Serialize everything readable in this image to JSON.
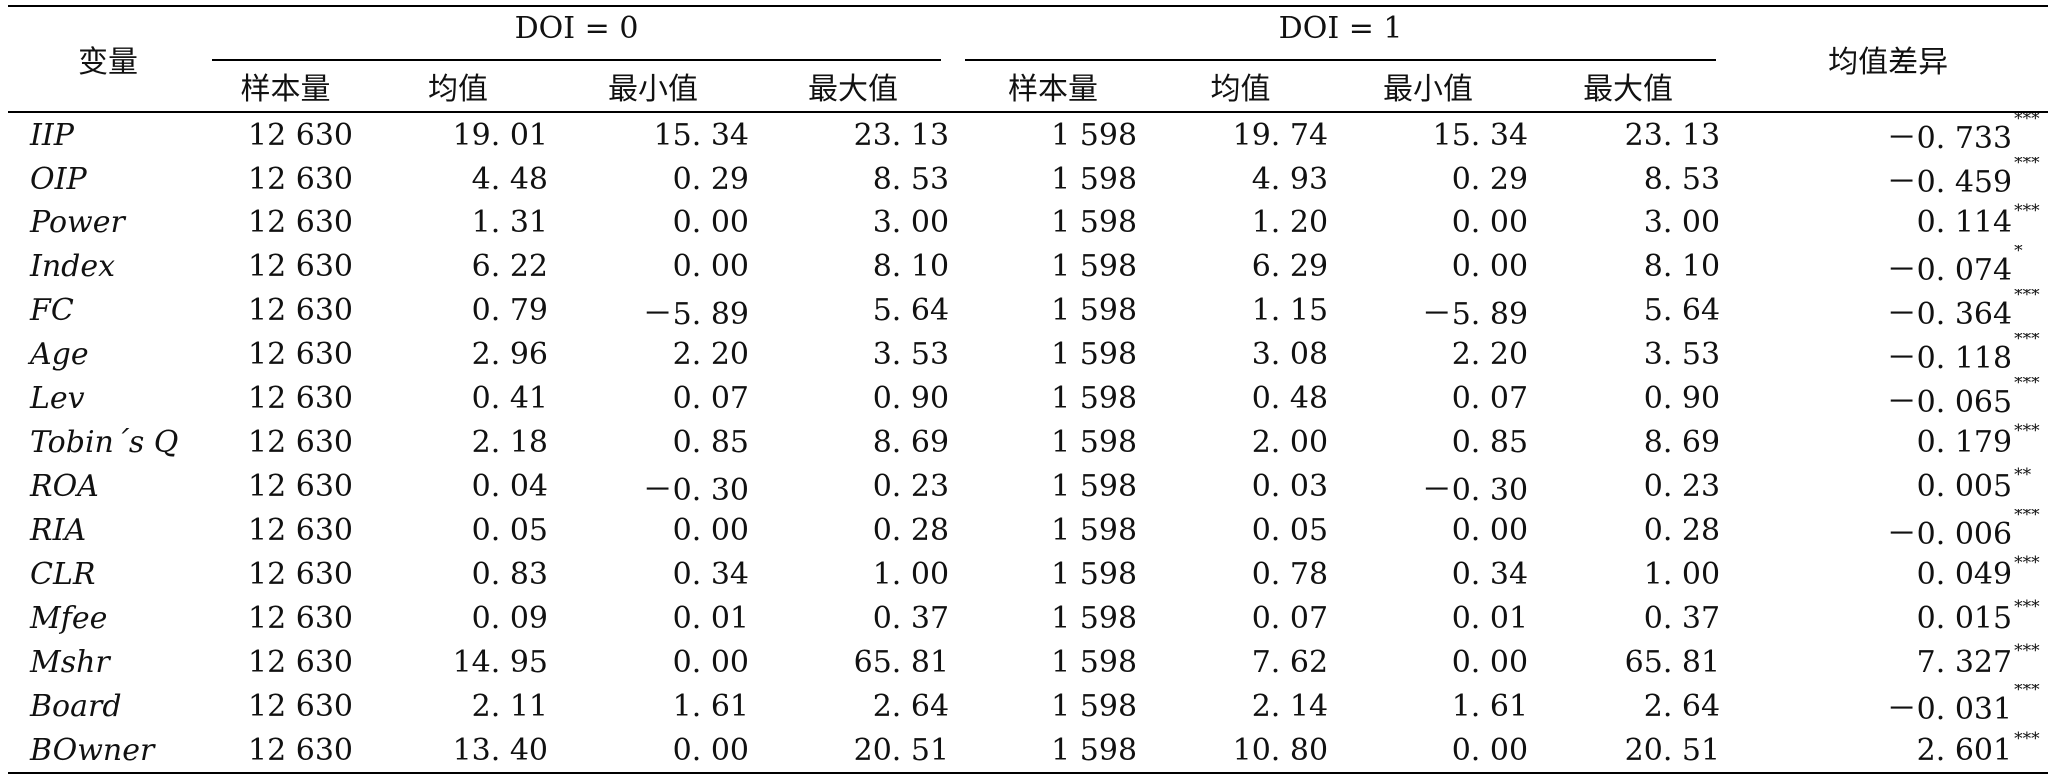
{
  "table": {
    "headers": {
      "variable": "变量",
      "group_doi0": "DOI = 0",
      "group_doi1": "DOI = 1",
      "mean_diff": "均值差异",
      "sub": [
        "样本量",
        "均值",
        "最小值",
        "最大值"
      ]
    },
    "rows": [
      {
        "var": "IIP",
        "n0": "12 630",
        "mean0": "19. 01",
        "min0": "15. 34",
        "max0": "23. 13",
        "n1": "1 598",
        "mean1": "19. 74",
        "min1": "15. 34",
        "max1": "23. 13",
        "diff": "－0. 733",
        "sig": "***"
      },
      {
        "var": "OIP",
        "n0": "12 630",
        "mean0": "4. 48",
        "min0": "0. 29",
        "max0": "8. 53",
        "n1": "1 598",
        "mean1": "4. 93",
        "min1": "0. 29",
        "max1": "8. 53",
        "diff": "－0. 459",
        "sig": "***"
      },
      {
        "var": "Power",
        "n0": "12 630",
        "mean0": "1. 31",
        "min0": "0. 00",
        "max0": "3. 00",
        "n1": "1 598",
        "mean1": "1. 20",
        "min1": "0. 00",
        "max1": "3. 00",
        "diff": "0. 114",
        "sig": "***"
      },
      {
        "var": "Index",
        "n0": "12 630",
        "mean0": "6. 22",
        "min0": "0. 00",
        "max0": "8. 10",
        "n1": "1 598",
        "mean1": "6. 29",
        "min1": "0. 00",
        "max1": "8. 10",
        "diff": "－0. 074",
        "sig": "*"
      },
      {
        "var": "FC",
        "n0": "12 630",
        "mean0": "0. 79",
        "min0": "－5. 89",
        "max0": "5. 64",
        "n1": "1 598",
        "mean1": "1. 15",
        "min1": "－5. 89",
        "max1": "5. 64",
        "diff": "－0. 364",
        "sig": "***"
      },
      {
        "var": "Age",
        "n0": "12 630",
        "mean0": "2. 96",
        "min0": "2. 20",
        "max0": "3. 53",
        "n1": "1 598",
        "mean1": "3. 08",
        "min1": "2. 20",
        "max1": "3. 53",
        "diff": "－0. 118",
        "sig": "***"
      },
      {
        "var": "Lev",
        "n0": "12 630",
        "mean0": "0. 41",
        "min0": "0. 07",
        "max0": "0. 90",
        "n1": "1 598",
        "mean1": "0. 48",
        "min1": "0. 07",
        "max1": "0. 90",
        "diff": "－0. 065",
        "sig": "***"
      },
      {
        "var": "Tobin´s Q",
        "n0": "12 630",
        "mean0": "2. 18",
        "min0": "0. 85",
        "max0": "8. 69",
        "n1": "1 598",
        "mean1": "2. 00",
        "min1": "0. 85",
        "max1": "8. 69",
        "diff": "0. 179",
        "sig": "***"
      },
      {
        "var": "ROA",
        "n0": "12 630",
        "mean0": "0. 04",
        "min0": "－0. 30",
        "max0": "0. 23",
        "n1": "1 598",
        "mean1": "0. 03",
        "min1": "－0. 30",
        "max1": "0. 23",
        "diff": "0. 005",
        "sig": "**"
      },
      {
        "var": "RIA",
        "n0": "12 630",
        "mean0": "0. 05",
        "min0": "0. 00",
        "max0": "0. 28",
        "n1": "1 598",
        "mean1": "0. 05",
        "min1": "0. 00",
        "max1": "0. 28",
        "diff": "－0. 006",
        "sig": "***"
      },
      {
        "var": "CLR",
        "n0": "12 630",
        "mean0": "0. 83",
        "min0": "0. 34",
        "max0": "1. 00",
        "n1": "1 598",
        "mean1": "0. 78",
        "min1": "0. 34",
        "max1": "1. 00",
        "diff": "0. 049",
        "sig": "***"
      },
      {
        "var": "Mfee",
        "n0": "12 630",
        "mean0": "0. 09",
        "min0": "0. 01",
        "max0": "0. 37",
        "n1": "1 598",
        "mean1": "0. 07",
        "min1": "0. 01",
        "max1": "0. 37",
        "diff": "0. 015",
        "sig": "***"
      },
      {
        "var": "Mshr",
        "n0": "12 630",
        "mean0": "14. 95",
        "min0": "0. 00",
        "max0": "65. 81",
        "n1": "1 598",
        "mean1": "7. 62",
        "min1": "0. 00",
        "max1": "65. 81",
        "diff": "7. 327",
        "sig": "***"
      },
      {
        "var": "Board",
        "n0": "12 630",
        "mean0": "2. 11",
        "min0": "1. 61",
        "max0": "2. 64",
        "n1": "1 598",
        "mean1": "2. 14",
        "min1": "1. 61",
        "max1": "2. 64",
        "diff": "－0. 031",
        "sig": "***"
      },
      {
        "var": "BOwner",
        "n0": "12 630",
        "mean0": "13. 40",
        "min0": "0. 00",
        "max0": "20. 51",
        "n1": "1 598",
        "mean1": "10. 80",
        "min1": "0. 00",
        "max1": "20. 51",
        "diff": "2. 601",
        "sig": "***"
      }
    ]
  }
}
